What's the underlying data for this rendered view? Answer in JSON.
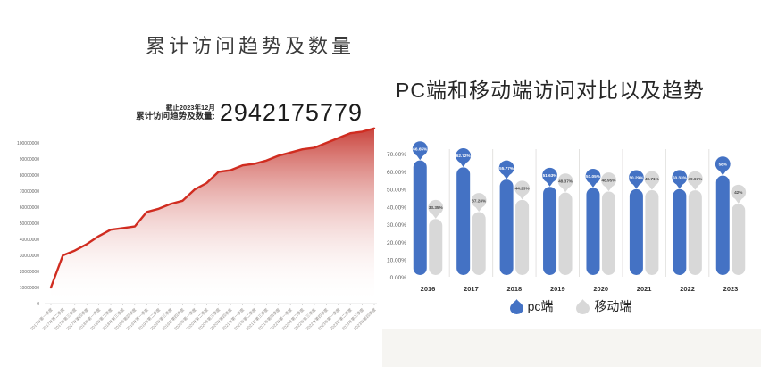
{
  "left_chart": {
    "title": "累计访问趋势及数量",
    "stat": {
      "as_of": "截止2023年12月",
      "label": "累计访问趋势及数量:",
      "value": "2942175779"
    },
    "line_color": "#d02c20",
    "fill_top_color": "#c43028"
  },
  "right_chart": {
    "title": "PC端和移动端访问对比以及趋势",
    "legend": [
      {
        "label": "pc端",
        "color": "#4472c4"
      },
      {
        "label": "移动端",
        "color": "#d8d8d8"
      }
    ]
  },
  "chart_data": [
    {
      "type": "area",
      "title": "累计访问趋势及数量",
      "categories": [
        "2017年第一季度",
        "2017年第二季度",
        "2017年第三季度",
        "2017年第四季度",
        "2018年第一季度",
        "2018年第二季度",
        "2018年第三季度",
        "2018年第四季度",
        "2019年第一季度",
        "2019年第二季度",
        "2019年第三季度",
        "2019年第四季度",
        "2020年第一季度",
        "2020年第二季度",
        "2020年第三季度",
        "2020年第四季度",
        "2021年第一季度",
        "2021年第二季度",
        "2021年第三季度",
        "2021年第四季度",
        "2022年第一季度",
        "2022年第二季度",
        "2022年第三季度",
        "2022年第四季度",
        "2023年第一季度",
        "2023年第二季度",
        "2023年第三季度",
        "2023年第四季度"
      ],
      "values": [
        10000000,
        30000000,
        33000000,
        37000000,
        42000000,
        46000000,
        47000000,
        48000000,
        57000000,
        59000000,
        62000000,
        64000000,
        71000000,
        75000000,
        82000000,
        83000000,
        86000000,
        87000000,
        89000000,
        92000000,
        94000000,
        96000000,
        97000000,
        100000000,
        103000000,
        106000000,
        107000000,
        109000000
      ],
      "yticks": [
        "100000000",
        "90000000",
        "80000000",
        "70000000",
        "60000000",
        "50000000",
        "40000000",
        "30000000",
        "20000000",
        "10000000",
        "0"
      ],
      "ylim": [
        0,
        116000000
      ],
      "grid": false,
      "annotation_total": "2942175779"
    },
    {
      "type": "bar",
      "title": "PC端和移动端访问对比以及趋势",
      "categories": [
        "2016",
        "2017",
        "2018",
        "2019",
        "2020",
        "2021",
        "2022",
        "2023"
      ],
      "series": [
        {
          "name": "pc端",
          "color": "#4472c4",
          "label_text_color": "#ffffff",
          "values": [
            66.65,
            62.72,
            55.77,
            51.63,
            51.05,
            50.29,
            50.33,
            58
          ],
          "labels": [
            "66.65%",
            "62.72%",
            "55.77%",
            "51.63%",
            "51.05%",
            "50.29%",
            "50.33%",
            "58%"
          ]
        },
        {
          "name": "移动端",
          "color": "#d8d8d8",
          "label_text_color": "#4a4a4a",
          "values": [
            33.35,
            37.28,
            44.23,
            48.37,
            48.95,
            49.71,
            49.67,
            42
          ],
          "labels": [
            "33.35%",
            "37.28%",
            "44.23%",
            "48.37%",
            "48.95%",
            "49.71%",
            "49.67%",
            "42%"
          ]
        }
      ],
      "yticks": [
        "70.00%",
        "60.00%",
        "50.00%",
        "40.00%",
        "30.00%",
        "20.00%",
        "10.00%",
        "0.00%"
      ],
      "ylim": [
        0,
        70
      ],
      "grid": false,
      "legend_position": "bottom"
    }
  ]
}
